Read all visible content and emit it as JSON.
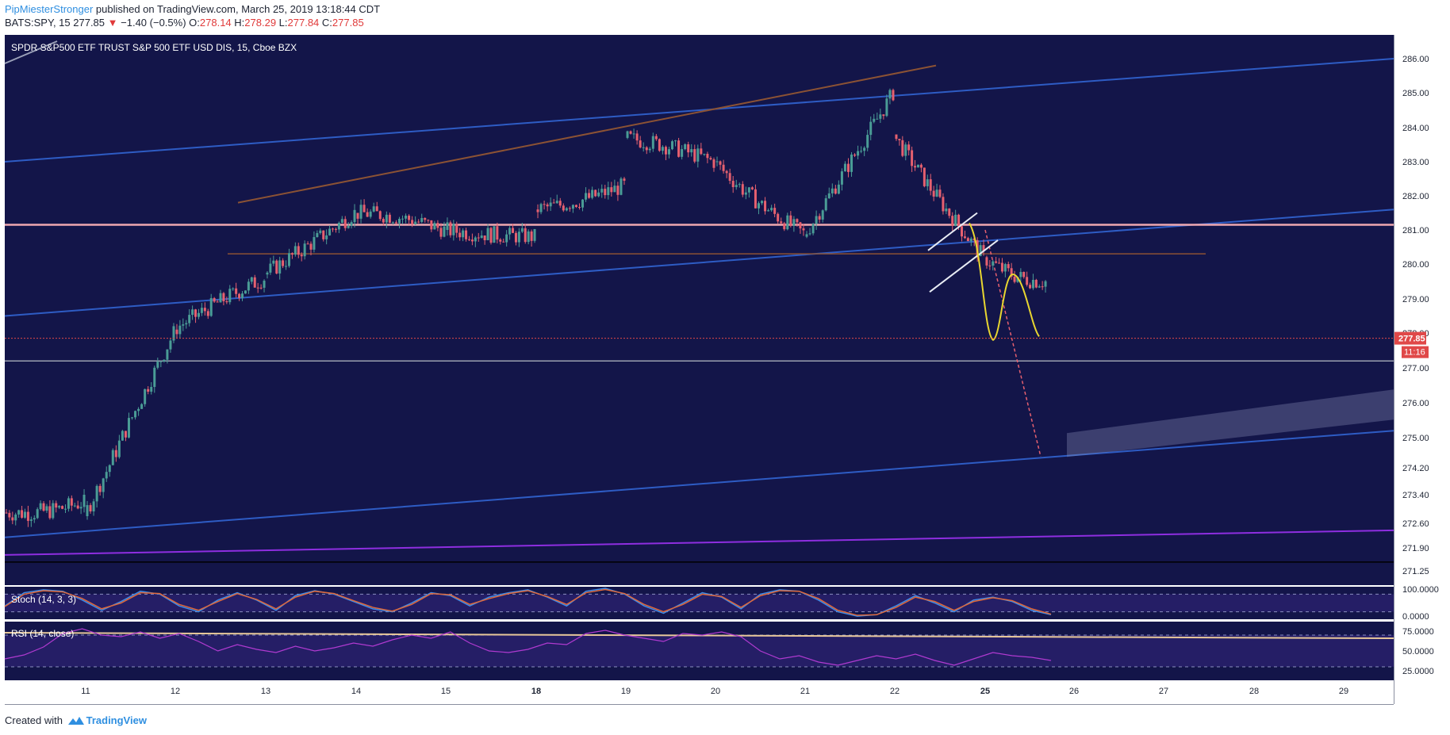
{
  "header": {
    "user": "PipMiesterStronger",
    "published_text": " published on TradingView.com, March 25, 2019 13:18:44 CDT",
    "symbol_line": "BATS:SPY, 15",
    "last": "277.85",
    "arrow": "▼",
    "change": "−1.40 (−0.5%)",
    "o_label": "O:",
    "o_value": "278.14",
    "h_label": "H:",
    "h_value": "278.29",
    "l_label": "L:",
    "l_value": "277.84",
    "c_label": "C:",
    "c_value": "277.85"
  },
  "footer": {
    "created": "Created with",
    "brand": "TradingView"
  },
  "colors": {
    "background": "#131549",
    "up": "#4a9c96",
    "down": "#e6606f",
    "blue_channel": "#2e5cc4",
    "brown_trend": "#8b5234",
    "purple_line": "#8e2ee0",
    "pink_level": "#f0a8b0",
    "yellow_curve": "#e8d630",
    "price_label": "#e04848",
    "stoch_k": "#3d8be8",
    "stoch_d": "#e0683a",
    "rsi": "#b03ad0",
    "axis_text": "#1e2433"
  },
  "chart_data": [
    {
      "type": "candlestick",
      "title": "SPDR S&P500 ETF TRUST S&P 500 ETF USD DIS, 15, Cboe BZX",
      "x_ticks": [
        "11",
        "12",
        "13",
        "14",
        "15",
        "18",
        "19",
        "20",
        "21",
        "22",
        "25",
        "26",
        "27",
        "28",
        "29"
      ],
      "y_ticks": [
        "286.00",
        "285.00",
        "284.00",
        "283.00",
        "282.00",
        "281.00",
        "280.00",
        "279.00",
        "278.00",
        "277.00",
        "276.00",
        "275.00",
        "274.20",
        "273.40",
        "272.60",
        "271.90",
        "271.25"
      ],
      "y_range": [
        271.0,
        286.7
      ],
      "last_price": "277.85",
      "countdown": "11:16",
      "daily_path": [
        {
          "day": "10",
          "o": 272.9,
          "h": 273.4,
          "l": 272.3,
          "c": 273.2
        },
        {
          "day": "11",
          "o": 272.8,
          "h": 278.2,
          "l": 272.6,
          "c": 278.0
        },
        {
          "day": "12",
          "o": 278.1,
          "h": 280.0,
          "l": 277.9,
          "c": 279.6
        },
        {
          "day": "13",
          "o": 279.7,
          "h": 282.1,
          "l": 279.0,
          "c": 281.5
        },
        {
          "day": "14",
          "o": 281.5,
          "h": 282.1,
          "l": 280.8,
          "c": 281.0
        },
        {
          "day": "15",
          "o": 281.0,
          "h": 281.4,
          "l": 280.3,
          "c": 280.8
        },
        {
          "day": "18",
          "o": 281.6,
          "h": 282.6,
          "l": 281.0,
          "c": 282.3
        },
        {
          "day": "19",
          "o": 283.7,
          "h": 284.3,
          "l": 282.7,
          "c": 283.0
        },
        {
          "day": "20",
          "o": 283.0,
          "h": 283.1,
          "l": 280.3,
          "c": 280.9
        },
        {
          "day": "21",
          "o": 280.8,
          "h": 285.2,
          "l": 280.6,
          "c": 285.0
        },
        {
          "day": "22",
          "o": 283.8,
          "h": 283.8,
          "l": 279.9,
          "c": 280.2
        },
        {
          "day": "25",
          "o": 280.2,
          "h": 281.4,
          "l": 277.7,
          "c": 279.5
        },
        {
          "day": "25b",
          "o": 279.5,
          "h": 280.1,
          "l": 277.8,
          "c": 277.85
        }
      ],
      "drawings": [
        {
          "kind": "trendline",
          "color": "blue_channel",
          "from": [
            "10",
            283.0
          ],
          "to": [
            "29+",
            286.0
          ]
        },
        {
          "kind": "trendline",
          "color": "blue_channel",
          "from": [
            "10",
            278.5
          ],
          "to": [
            "29+",
            281.6
          ]
        },
        {
          "kind": "trendline",
          "color": "blue_channel",
          "from": [
            "10",
            272.2
          ],
          "to": [
            "29+",
            275.2
          ]
        },
        {
          "kind": "trendline",
          "color": "purple_line",
          "from": [
            "10",
            271.7
          ],
          "to": [
            "29+",
            272.4
          ]
        },
        {
          "kind": "trendline",
          "color": "brown_trend",
          "from": [
            "12.7",
            281.8
          ],
          "to": [
            "22.5",
            285.8
          ]
        },
        {
          "kind": "horizontal",
          "color": "brown_trend",
          "price": 280.3
        },
        {
          "kind": "horizontal",
          "color": "pink_level",
          "price": 281.15
        },
        {
          "kind": "horizontal",
          "color": "grey",
          "price": 277.2
        },
        {
          "kind": "horizontal",
          "color": "black",
          "price": 271.5
        },
        {
          "kind": "flag",
          "color": "white"
        },
        {
          "kind": "curve",
          "color": "yellow_curve"
        },
        {
          "kind": "projection",
          "color": "down",
          "from": [
            "25",
            281.0
          ],
          "to": [
            "25.6",
            274.5
          ]
        },
        {
          "kind": "zone",
          "color": "grey",
          "from": [
            "25.9",
            274.7
          ],
          "to": [
            "29+",
            275.7
          ]
        }
      ]
    },
    {
      "type": "line",
      "title": "Stoch (14, 3, 3)",
      "y_ticks": [
        "100.0000",
        "0.0000"
      ],
      "y_range": [
        0,
        100
      ],
      "series": [
        {
          "values": [
            40,
            85,
            95,
            90,
            60,
            25,
            55,
            90,
            80,
            40,
            20,
            60,
            85,
            60,
            25,
            75,
            92,
            80,
            55,
            30,
            20,
            50,
            85,
            75,
            40,
            70,
            85,
            95,
            70,
            40,
            90,
            100,
            80,
            40,
            15,
            50,
            85,
            70,
            30,
            80,
            95,
            90,
            60,
            20,
            5,
            10,
            40,
            75,
            50,
            20,
            60,
            70,
            55,
            25,
            10
          ]
        },
        {
          "values": [
            38,
            80,
            92,
            88,
            65,
            30,
            50,
            85,
            82,
            45,
            25,
            55,
            82,
            62,
            30,
            70,
            90,
            82,
            58,
            35,
            22,
            45,
            82,
            78,
            45,
            65,
            82,
            92,
            72,
            45,
            85,
            96,
            82,
            45,
            20,
            45,
            80,
            72,
            35,
            75,
            92,
            90,
            65,
            25,
            8,
            10,
            35,
            70,
            55,
            25,
            55,
            68,
            58,
            30,
            12
          ]
        }
      ]
    },
    {
      "type": "line",
      "title": "RSI (14, close)",
      "y_ticks": [
        "75.0000",
        "50.0000",
        "25.0000"
      ],
      "y_range": [
        15,
        85
      ],
      "bands": [
        30,
        70
      ],
      "series": [
        {
          "values": [
            40,
            45,
            55,
            72,
            78,
            70,
            68,
            74,
            66,
            72,
            62,
            50,
            58,
            52,
            48,
            56,
            50,
            54,
            60,
            56,
            64,
            70,
            66,
            74,
            60,
            50,
            48,
            52,
            60,
            58,
            72,
            76,
            70,
            66,
            62,
            72,
            70,
            74,
            68,
            50,
            40,
            44,
            36,
            32,
            38,
            44,
            40,
            46,
            38,
            32,
            40,
            48,
            44,
            42,
            38
          ]
        }
      ]
    }
  ]
}
